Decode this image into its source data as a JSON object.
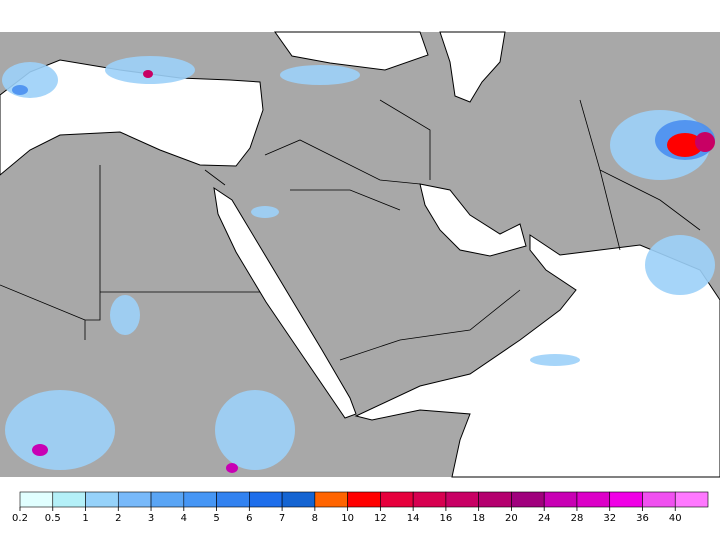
{
  "colorbar": {
    "labels": [
      0.2,
      0.5,
      1,
      2,
      3,
      4,
      5,
      6,
      7,
      8,
      10,
      12,
      14,
      16,
      18,
      20,
      24,
      28,
      32,
      36,
      40
    ],
    "colors": [
      "#e1ffff",
      "#b4f0f8",
      "#96d2fa",
      "#78b9fa",
      "#5aa5f5",
      "#4696f5",
      "#3282f0",
      "#1e6eeb",
      "#1464d2",
      "#ff6400",
      "#ff0000",
      "#e6003c",
      "#d70050",
      "#c80064",
      "#b4006e",
      "#a0007d",
      "#c800b4",
      "#dc00c8",
      "#f000e6",
      "#f050f0",
      "#ff78ff"
    ]
  }
}
